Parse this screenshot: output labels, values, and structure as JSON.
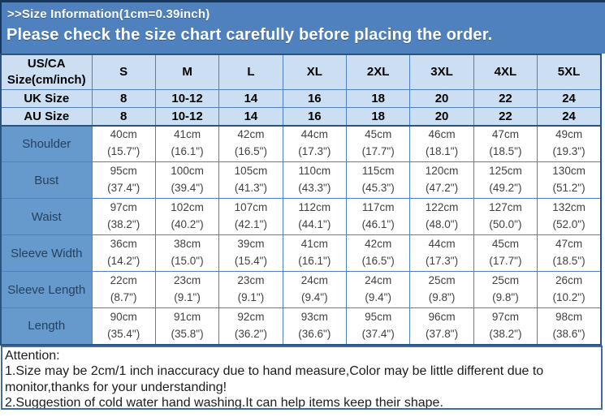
{
  "header": {
    "title": ">>Size Information(1cm=0.39inch)",
    "subtitle": "Please check the size chart carefully before placing the order."
  },
  "table": {
    "corner_label": "US/CA\nSize(cm/inch)",
    "size_headers": [
      "S",
      "M",
      "L",
      "XL",
      "2XL",
      "3XL",
      "4XL",
      "5XL"
    ],
    "uk_row": {
      "label": "UK Size",
      "values": [
        "8",
        "10-12",
        "14",
        "16",
        "18",
        "20",
        "22",
        "24"
      ]
    },
    "au_row": {
      "label": "AU Size",
      "values": [
        "8",
        "10-12",
        "14",
        "16",
        "18",
        "20",
        "22",
        "24"
      ]
    },
    "measurements": [
      {
        "label": "Shoulder",
        "cells": [
          "40cm\n(15.7\")",
          "41cm\n(16.1\")",
          "42cm\n(16.5\")",
          "44cm\n(17.3\")",
          "45cm\n(17.7\")",
          "46cm\n(18.1\")",
          "47cm\n(18.5\")",
          "49cm\n(19.3\")"
        ]
      },
      {
        "label": "Bust",
        "cells": [
          "95cm\n(37.4\")",
          "100cm\n(39.4\")",
          "105cm\n(41.3\")",
          "110cm\n(43.3\")",
          "115cm\n(45.3\")",
          "120cm\n(47.2\")",
          "125cm\n(49.2\")",
          "130cm\n(51.2\")"
        ]
      },
      {
        "label": "Waist",
        "cells": [
          "97cm\n(38.2\")",
          "102cm\n(40.2\")",
          "107cm\n(42.1\")",
          "112cm\n(44.1\")",
          "117cm\n(46.1\")",
          "122cm\n(48.0\")",
          "127cm\n(50.0\")",
          "132cm\n(52.0\")"
        ]
      },
      {
        "label": "Sleeve Width",
        "cells": [
          "36cm\n(14.2\")",
          "38cm\n(15.0\")",
          "39cm\n(15.4\")",
          "41cm\n(16.1\")",
          "42cm\n(16.5\")",
          "44cm\n(17.3\")",
          "45cm\n(17.7\")",
          "47cm\n(18.5\")"
        ]
      },
      {
        "label": "Sleeve Length",
        "cells": [
          "22cm\n(8.7\")",
          "23cm\n(9.1\")",
          "23cm\n(9.1\")",
          "24cm\n(9.4\")",
          "24cm\n(9.4\")",
          "25cm\n(9.8\")",
          "25cm\n(9.8\")",
          "26cm\n(10.2\")"
        ]
      },
      {
        "label": "Length",
        "cells": [
          "90cm\n(35.4\")",
          "91cm\n(35.8\")",
          "92cm\n(36.2\")",
          "93cm\n(36.6\")",
          "95cm\n(37.4\")",
          "96cm\n(37.8\")",
          "97cm\n(38.2\")",
          "98cm\n(38.6\")"
        ]
      }
    ]
  },
  "attention": {
    "heading": "Attention:",
    "notes": [
      "1.Size may be 2cm/1 inch inaccuracy due to hand measure,Color may be little different due to monitor,thanks for your understanding!",
      "2.Suggestion of cold water hand washing.It can help items keep their shape."
    ]
  },
  "colors": {
    "band_blue": "#4e81bd",
    "dark_border": "#17375e",
    "header_cell_blue": "#cbdef2",
    "label_cell_blue": "#6699cc",
    "cell_border_blue": "#4f81bd",
    "data_text_gray": "#404040",
    "title_text": "#ffffff"
  }
}
